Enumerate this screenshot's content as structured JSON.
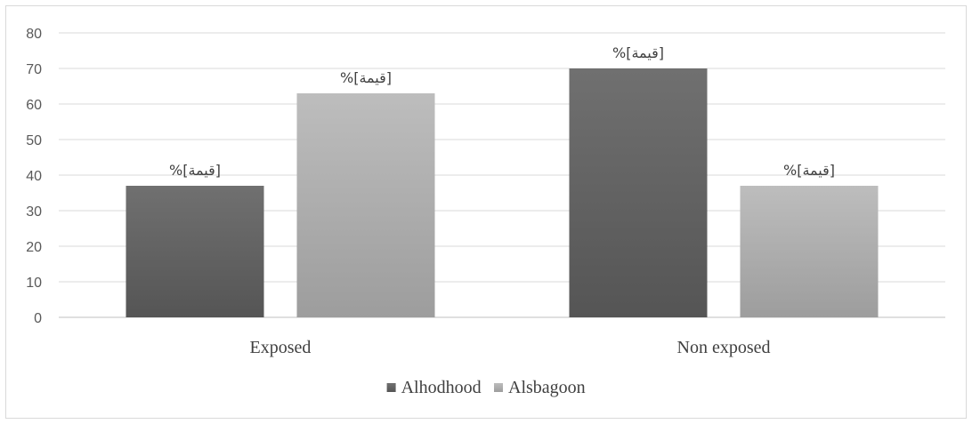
{
  "chart_data": {
    "type": "bar",
    "categories": [
      "Exposed",
      "Non exposed"
    ],
    "series": [
      {
        "name": "Alhodhood",
        "values": [
          37,
          70
        ],
        "color": "#555555",
        "color_top": "#707070",
        "labels": [
          "%[قيمة]",
          "%[قيمة]"
        ]
      },
      {
        "name": "Alsbagoon",
        "values": [
          63,
          37
        ],
        "color": "#9d9d9d",
        "color_top": "#bdbdbd",
        "labels": [
          "%[قيمة]",
          "%[قيمة]"
        ]
      }
    ],
    "ylim": [
      0,
      80
    ],
    "yticks": [
      0,
      10,
      20,
      30,
      40,
      50,
      60,
      70,
      80
    ],
    "grid": true,
    "legend_position": "bottom",
    "title": "",
    "xlabel": "",
    "ylabel": ""
  }
}
